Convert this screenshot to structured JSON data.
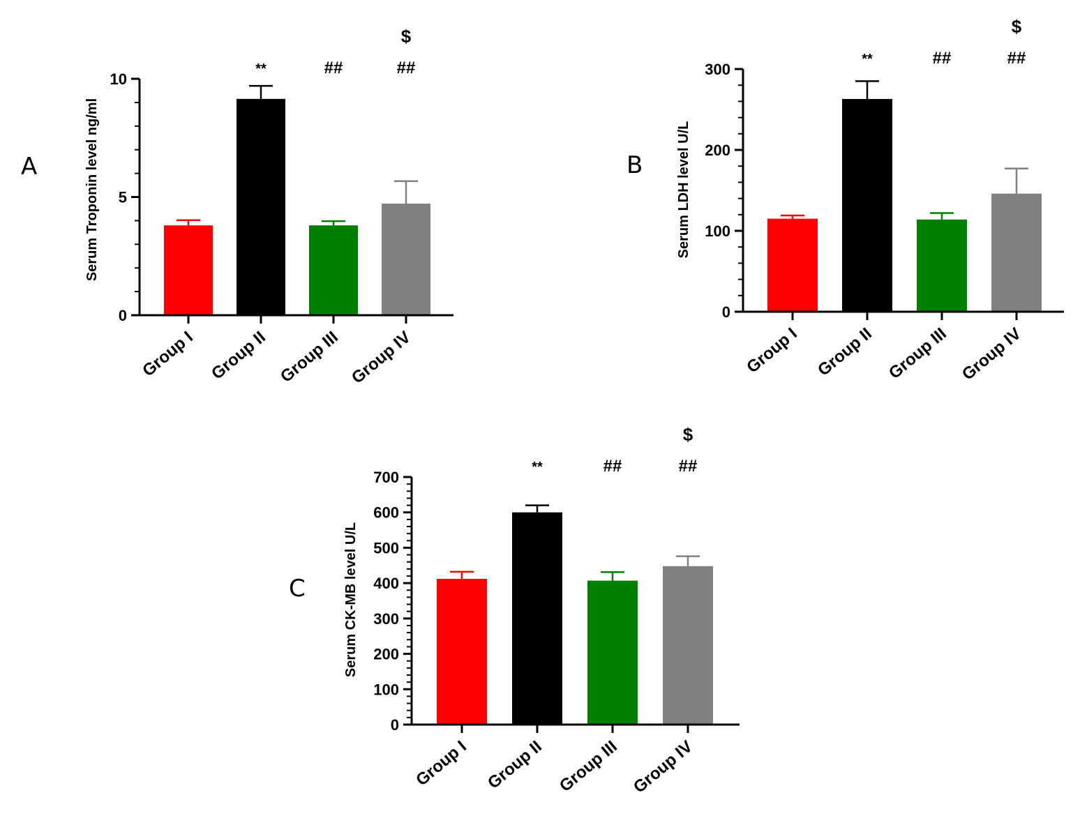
{
  "chart_data": [
    {
      "type": "bar",
      "panel_label": "A",
      "title": "",
      "xlabel": "",
      "ylabel": "Serum Troponin level ng/ml",
      "ylim": [
        0,
        10
      ],
      "yticks": [
        0,
        5,
        10
      ],
      "categories": [
        "Group I",
        "Group II",
        "Group III",
        "Group IV"
      ],
      "values": [
        3.8,
        9.15,
        3.8,
        4.72
      ],
      "errors": [
        0.22,
        0.55,
        0.18,
        0.95
      ],
      "colors": [
        "#ff0000",
        "#000000",
        "#008000",
        "#808080"
      ],
      "annotations": [
        [],
        [
          "**"
        ],
        [
          "##"
        ],
        [
          "##",
          "$"
        ]
      ]
    },
    {
      "type": "bar",
      "panel_label": "B",
      "title": "",
      "xlabel": "",
      "ylabel": "Serum LDH level U/L",
      "ylim": [
        0,
        300
      ],
      "yticks": [
        0,
        100,
        200,
        300
      ],
      "categories": [
        "Group I",
        "Group II",
        "Group III",
        "Group IV"
      ],
      "values": [
        115,
        263,
        114,
        146
      ],
      "errors": [
        4,
        22,
        8,
        31
      ],
      "colors": [
        "#ff0000",
        "#000000",
        "#008000",
        "#808080"
      ],
      "annotations": [
        [],
        [
          "**"
        ],
        [
          "##"
        ],
        [
          "##",
          "$"
        ]
      ]
    },
    {
      "type": "bar",
      "panel_label": "C",
      "title": "",
      "xlabel": "",
      "ylabel": "Serum CK-MB level U/L",
      "ylim": [
        0,
        700
      ],
      "yticks": [
        0,
        100,
        200,
        300,
        400,
        500,
        600,
        700
      ],
      "categories": [
        "Group I",
        "Group II",
        "Group III",
        "Group IV"
      ],
      "values": [
        412,
        600,
        407,
        448
      ],
      "errors": [
        20,
        20,
        24,
        28
      ],
      "colors": [
        "#ff0000",
        "#000000",
        "#008000",
        "#808080"
      ],
      "annotations": [
        [],
        [
          "**"
        ],
        [
          "##"
        ],
        [
          "##",
          "$"
        ]
      ]
    }
  ]
}
